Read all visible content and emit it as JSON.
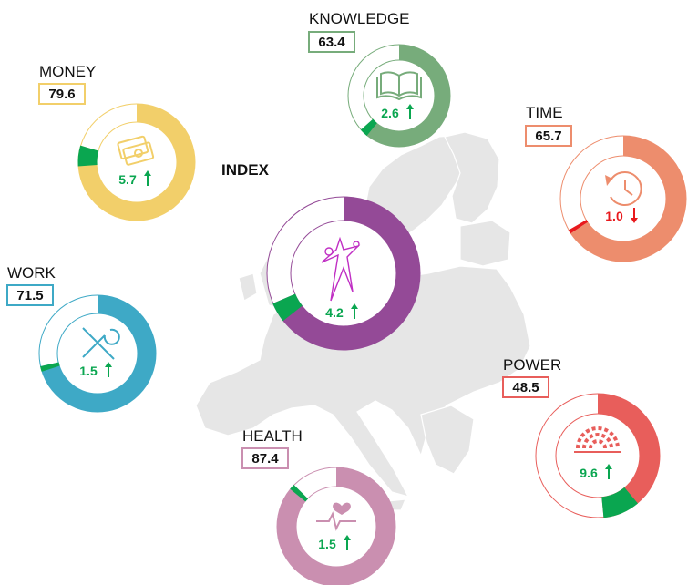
{
  "chart_data": {
    "type": "donut",
    "title": "INDEX",
    "scale_max": 100,
    "index": {
      "name": "INDEX",
      "value": 68.6,
      "change": 4.2,
      "direction": "up",
      "color": "#944a97",
      "icon": "gender-equality-logo-icon"
    },
    "domains": [
      {
        "key": "knowledge",
        "name": "KNOWLEDGE",
        "value": 63.4,
        "change": 2.6,
        "direction": "up",
        "color": "#77ac7b",
        "icon": "open-book-icon"
      },
      {
        "key": "money",
        "name": "MONEY",
        "value": 79.6,
        "change": 5.7,
        "direction": "up",
        "color": "#f2cf6a",
        "icon": "banknotes-icon"
      },
      {
        "key": "time",
        "name": "TIME",
        "value": 65.7,
        "change": 1.0,
        "direction": "down",
        "color": "#ed8d6d",
        "icon": "clock-history-icon"
      },
      {
        "key": "work",
        "name": "WORK",
        "value": 71.5,
        "change": 1.5,
        "direction": "up",
        "color": "#3ea9c6",
        "icon": "tools-icon"
      },
      {
        "key": "power",
        "name": "POWER",
        "value": 48.5,
        "change": 9.6,
        "direction": "up",
        "color": "#e85e5b",
        "icon": "parliament-icon"
      },
      {
        "key": "health",
        "name": "HEALTH",
        "value": 87.4,
        "change": 1.5,
        "direction": "up",
        "color": "#ca8fb0",
        "icon": "heartbeat-icon"
      }
    ],
    "colors": {
      "increase": "#0aa650",
      "decrease": "#e8191d",
      "map": "#e6e6e6"
    }
  }
}
